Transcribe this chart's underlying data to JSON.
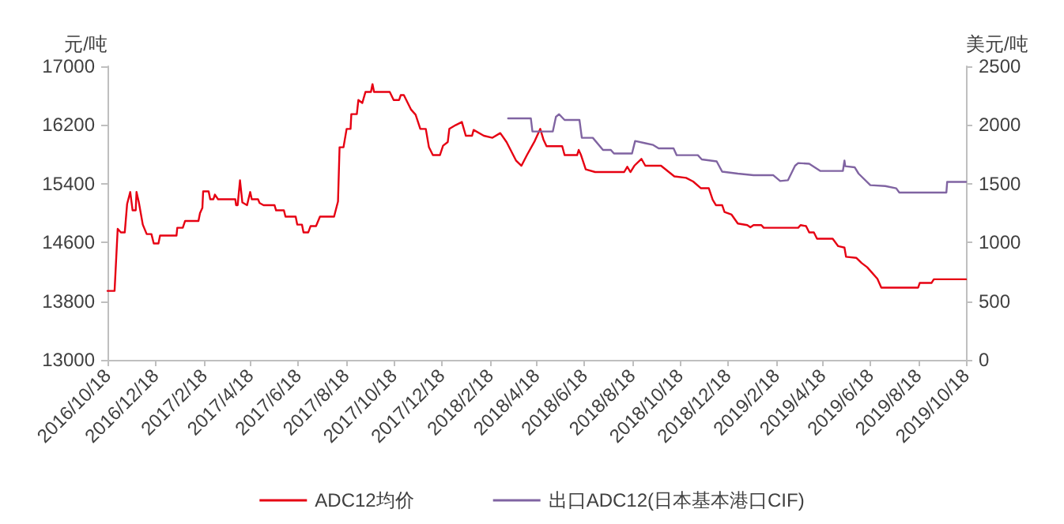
{
  "chart_data": {
    "type": "line",
    "ylabel": "元/吨",
    "y2label": "美元/吨",
    "legend": "bottom",
    "grid": false,
    "marker": "none",
    "line_style": "solid",
    "xlim": [
      "2016-10-18",
      "2019-10-18"
    ],
    "xticks": [
      {
        "value": "2016-10-18",
        "label": "2016/10/18"
      },
      {
        "value": "2016-12-18",
        "label": "2016/12/18"
      },
      {
        "value": "2017-02-18",
        "label": "2017/2/18"
      },
      {
        "value": "2017-04-18",
        "label": "2017/4/18"
      },
      {
        "value": "2017-06-18",
        "label": "2017/6/18"
      },
      {
        "value": "2017-08-18",
        "label": "2017/8/18"
      },
      {
        "value": "2017-10-18",
        "label": "2017/10/18"
      },
      {
        "value": "2017-12-18",
        "label": "2017/12/18"
      },
      {
        "value": "2018-02-18",
        "label": "2018/2/18"
      },
      {
        "value": "2018-04-18",
        "label": "2018/4/18"
      },
      {
        "value": "2018-06-18",
        "label": "2018/6/18"
      },
      {
        "value": "2018-08-18",
        "label": "2018/8/18"
      },
      {
        "value": "2018-10-18",
        "label": "2018/10/18"
      },
      {
        "value": "2018-12-18",
        "label": "2018/12/18"
      },
      {
        "value": "2019-02-18",
        "label": "2019/2/18"
      },
      {
        "value": "2019-04-18",
        "label": "2019/4/18"
      },
      {
        "value": "2019-06-18",
        "label": "2019/6/18"
      },
      {
        "value": "2019-08-18",
        "label": "2019/8/18"
      },
      {
        "value": "2019-10-18",
        "label": "2019/10/18"
      }
    ],
    "ylim": [
      13000,
      17000
    ],
    "yticks": [
      13000,
      13800,
      14600,
      15400,
      16200,
      17000
    ],
    "y2lim": [
      0,
      2500
    ],
    "y2ticks": [
      0,
      500,
      1000,
      1500,
      2000,
      2500
    ],
    "series": [
      {
        "name": "ADC12均价",
        "color": "#e60012",
        "x": [
          "2016-10-18",
          "2016-10-27",
          "2016-10-31",
          "2016-11-04",
          "2016-11-09",
          "2016-11-12",
          "2016-11-16",
          "2016-11-19",
          "2016-11-23",
          "2016-11-24",
          "2016-11-27",
          "2016-12-02",
          "2016-12-07",
          "2016-12-13",
          "2016-12-16",
          "2016-12-22",
          "2016-12-24",
          "2017-01-14",
          "2017-01-15",
          "2017-01-22",
          "2017-01-25",
          "2017-02-11",
          "2017-02-13",
          "2017-02-16",
          "2017-02-17",
          "2017-02-24",
          "2017-02-26",
          "2017-03-02",
          "2017-03-04",
          "2017-03-08",
          "2017-03-30",
          "2017-03-31",
          "2017-04-02",
          "2017-04-05",
          "2017-04-08",
          "2017-04-14",
          "2017-04-18",
          "2017-04-20",
          "2017-04-28",
          "2017-04-30",
          "2017-05-05",
          "2017-05-19",
          "2017-05-21",
          "2017-05-31",
          "2017-06-02",
          "2017-06-15",
          "2017-06-17",
          "2017-06-23",
          "2017-06-25",
          "2017-07-01",
          "2017-07-04",
          "2017-07-11",
          "2017-07-16",
          "2017-08-03",
          "2017-08-08",
          "2017-08-10",
          "2017-08-15",
          "2017-08-19",
          "2017-08-24",
          "2017-08-25",
          "2017-09-01",
          "2017-09-03",
          "2017-09-08",
          "2017-09-12",
          "2017-09-19",
          "2017-09-21",
          "2017-09-23",
          "2017-10-13",
          "2017-10-18",
          "2017-10-25",
          "2017-10-27",
          "2017-10-31",
          "2017-11-09",
          "2017-11-15",
          "2017-11-21",
          "2017-11-28",
          "2017-12-02",
          "2017-12-07",
          "2017-12-16",
          "2017-12-20",
          "2017-12-26",
          "2017-12-28",
          "2018-01-05",
          "2018-01-13",
          "2018-01-18",
          "2018-01-26",
          "2018-01-28",
          "2018-02-10",
          "2018-02-21",
          "2018-03-03",
          "2018-03-11",
          "2018-03-23",
          "2018-03-30",
          "2018-04-06",
          "2018-04-16",
          "2018-04-23",
          "2018-04-27",
          "2018-05-01",
          "2018-05-21",
          "2018-05-24",
          "2018-06-09",
          "2018-06-11",
          "2018-06-14",
          "2018-06-20",
          "2018-07-02",
          "2018-08-08",
          "2018-08-12",
          "2018-08-16",
          "2018-08-21",
          "2018-08-30",
          "2018-09-04",
          "2018-09-24",
          "2018-10-11",
          "2018-10-26",
          "2018-11-04",
          "2018-11-14",
          "2018-11-24",
          "2018-11-29",
          "2018-12-03",
          "2018-12-11",
          "2018-12-14",
          "2018-12-23",
          "2018-12-31",
          "2019-01-12",
          "2019-01-16",
          "2019-01-20",
          "2019-01-30",
          "2019-02-02",
          "2019-03-18",
          "2019-03-21",
          "2019-03-28",
          "2019-04-01",
          "2019-04-07",
          "2019-04-11",
          "2019-05-01",
          "2019-05-08",
          "2019-05-16",
          "2019-05-18",
          "2019-05-31",
          "2019-06-07",
          "2019-06-14",
          "2019-06-20",
          "2019-06-27",
          "2019-07-02",
          "2019-08-18",
          "2019-08-20",
          "2019-09-04",
          "2019-09-07",
          "2019-10-18"
        ],
        "values": [
          13940,
          13940,
          14785,
          14736,
          14736,
          15123,
          15287,
          15037,
          15037,
          15287,
          15145,
          14843,
          14714,
          14714,
          14586,
          14586,
          14693,
          14693,
          14800,
          14800,
          14893,
          14893,
          15000,
          15070,
          15295,
          15295,
          15188,
          15188,
          15252,
          15188,
          15188,
          15108,
          15108,
          15446,
          15145,
          15108,
          15287,
          15188,
          15188,
          15137,
          15108,
          15108,
          15037,
          15037,
          14951,
          14951,
          14843,
          14843,
          14736,
          14736,
          14822,
          14822,
          14951,
          14951,
          15158,
          15897,
          15897,
          16147,
          16147,
          16348,
          16348,
          16541,
          16500,
          16650,
          16650,
          16757,
          16650,
          16650,
          16541,
          16541,
          16607,
          16607,
          16413,
          16340,
          16147,
          16147,
          15897,
          15790,
          15790,
          15918,
          15968,
          16147,
          16198,
          16241,
          16054,
          16054,
          16133,
          16054,
          16026,
          16090,
          15968,
          15717,
          15645,
          15790,
          15983,
          16147,
          16004,
          15911,
          15911,
          15790,
          15790,
          15860,
          15790,
          15596,
          15559,
          15559,
          15631,
          15559,
          15645,
          15739,
          15645,
          15645,
          15500,
          15480,
          15430,
          15338,
          15338,
          15180,
          15108,
          15108,
          15015,
          14979,
          14857,
          14836,
          14807,
          14836,
          14836,
          14800,
          14800,
          14836,
          14822,
          14736,
          14736,
          14650,
          14650,
          14549,
          14530,
          14405,
          14390,
          14319,
          14262,
          14190,
          14104,
          13984,
          13984,
          14048,
          14048,
          14098,
          14098
        ]
      },
      {
        "name": "出口ADC12(日本基本港口CIF)",
        "color": "#8064a2",
        "axis": "y2",
        "x": [
          "2018-03-13",
          "2018-04-11",
          "2018-04-13",
          "2018-05-09",
          "2018-05-13",
          "2018-05-17",
          "2018-05-24",
          "2018-06-12",
          "2018-06-15",
          "2018-06-29",
          "2018-07-12",
          "2018-07-22",
          "2018-07-26",
          "2018-08-18",
          "2018-08-22",
          "2018-09-04",
          "2018-09-14",
          "2018-09-21",
          "2018-10-10",
          "2018-10-14",
          "2018-11-10",
          "2018-11-15",
          "2018-12-04",
          "2018-12-11",
          "2018-12-31",
          "2019-01-20",
          "2019-02-14",
          "2019-02-23",
          "2019-03-05",
          "2019-03-14",
          "2019-03-18",
          "2019-04-01",
          "2019-04-15",
          "2019-05-14",
          "2019-05-16",
          "2019-05-17",
          "2019-05-29",
          "2019-06-03",
          "2019-06-18",
          "2019-07-07",
          "2019-07-21",
          "2019-07-25",
          "2019-09-23",
          "2019-09-24",
          "2019-10-18"
        ],
        "values": [
          2056,
          2056,
          1945,
          1945,
          2070,
          2092,
          2043,
          2043,
          1891,
          1891,
          1788,
          1788,
          1757,
          1757,
          1864,
          1845,
          1830,
          1801,
          1801,
          1743,
          1743,
          1707,
          1690,
          1603,
          1586,
          1573,
          1573,
          1523,
          1530,
          1653,
          1676,
          1670,
          1609,
          1609,
          1698,
          1649,
          1640,
          1586,
          1488,
          1480,
          1461,
          1425,
          1425,
          1515,
          1515
        ]
      }
    ]
  }
}
